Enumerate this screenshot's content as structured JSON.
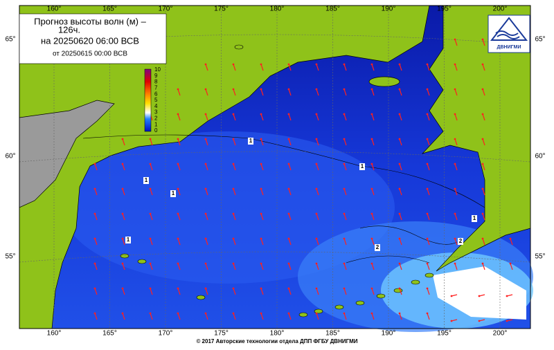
{
  "title": {
    "line1": "Прогноз высоты волн (м) –",
    "line2": "126ч.",
    "line3": "на 20250620 06:00 ВСВ",
    "line4": "от 20250615 00:00 ВСВ"
  },
  "colorbar": {
    "labels": [
      10,
      9,
      8,
      7,
      6,
      5,
      4,
      3,
      2,
      1,
      0
    ]
  },
  "longitude_labels": [
    "160°",
    "165°",
    "170°",
    "175°",
    "180°",
    "185°",
    "190°",
    "195°",
    "200°"
  ],
  "latitude_labels": [
    "65°",
    "60°",
    "55°"
  ],
  "contour_labels": [
    "1",
    "1",
    "1",
    "1",
    "1",
    "1",
    "2",
    "2"
  ],
  "logo": "ДВНИГМИ",
  "footer": "© 2017 Авторские технологии отдела ДПП ФГБУ ДВНИГМИ"
}
